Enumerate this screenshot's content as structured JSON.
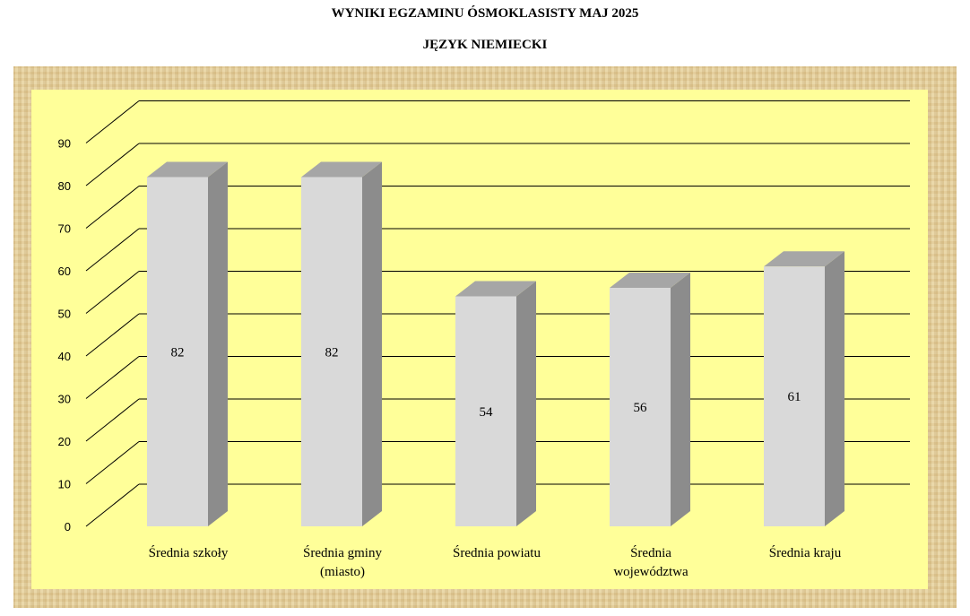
{
  "title_line1": "WYNIKI EGZAMINU ÓSMOKLASISTY MAJ 2025",
  "title_line2": "JĘZYK NIEMIECKI",
  "chart_data": {
    "type": "bar",
    "title": "WYNIKI EGZAMINU ÓSMOKLASISTY MAJ 2025 — JĘZYK NIEMIECKI",
    "categories": [
      [
        "Średnia szkoły"
      ],
      [
        "Średnia gminy",
        "(miasto)"
      ],
      [
        "Średnia powiatu"
      ],
      [
        "Średnia",
        "województwa"
      ],
      [
        "Średnia kraju"
      ]
    ],
    "values": [
      82,
      82,
      54,
      56,
      61
    ],
    "ylim": [
      0,
      90
    ],
    "yticks": [
      0,
      10,
      20,
      30,
      40,
      50,
      60,
      70,
      80,
      90
    ],
    "grid": true,
    "legend": "none",
    "colors": {
      "bar_front": "#d9d9d9",
      "bar_side": "#8c8c8c",
      "bar_top": "#a6a6a6",
      "plot_background": "#ffff99",
      "frame": "#e3cf9e",
      "grid": "#000000"
    }
  }
}
